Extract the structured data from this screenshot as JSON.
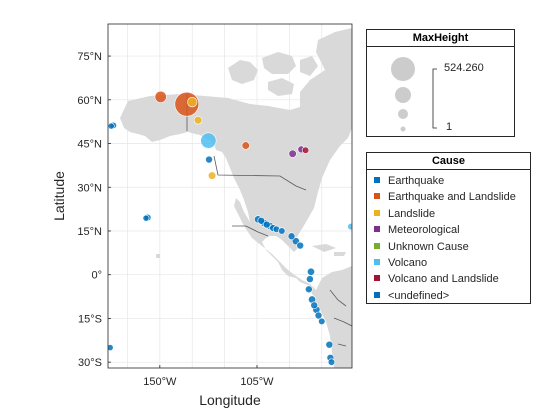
{
  "axes": {
    "xlabel": "Longitude",
    "ylabel": "Latitude",
    "lon_range": [
      -174,
      -61
    ],
    "lat_range": [
      -32,
      86
    ],
    "lat_ticks": [
      {
        "value": 75,
        "label": "75°N"
      },
      {
        "value": 60,
        "label": "60°N"
      },
      {
        "value": 45,
        "label": "45°N"
      },
      {
        "value": 30,
        "label": "30°N"
      },
      {
        "value": 15,
        "label": "15°N"
      },
      {
        "value": 0,
        "label": "0°"
      },
      {
        "value": -15,
        "label": "15°S"
      },
      {
        "value": -30,
        "label": "30°S"
      }
    ],
    "lon_ticks": [
      {
        "value": -150,
        "label": "150°W"
      },
      {
        "value": -105,
        "label": "105°W"
      }
    ],
    "grid": true
  },
  "size_legend": {
    "title": "MaxHeight",
    "max_label": "524.260",
    "min_label": "1"
  },
  "cause_legend": {
    "title": "Cause",
    "items": [
      {
        "label": "Earthquake",
        "color": "#0072BD"
      },
      {
        "label": "Earthquake and Landslide",
        "color": "#D95319"
      },
      {
        "label": "Landslide",
        "color": "#EDB120"
      },
      {
        "label": "Meteorological",
        "color": "#7E2F8E"
      },
      {
        "label": "Unknown Cause",
        "color": "#77AC30"
      },
      {
        "label": "Volcano",
        "color": "#4DBEEE"
      },
      {
        "label": "Volcano and Landslide",
        "color": "#A2142F"
      },
      {
        "label": "<undefined>",
        "color": "#0072BD"
      }
    ]
  },
  "chart_data": {
    "type": "scatter",
    "marker_size_variable": "MaxHeight",
    "marker_color_variable": "Cause",
    "points": [
      {
        "lon": -171.5,
        "lat": 51.2,
        "cause": "Earthquake",
        "height": 3
      },
      {
        "lon": -172.5,
        "lat": 51.0,
        "cause": "Earthquake",
        "height": 2
      },
      {
        "lon": -155.6,
        "lat": 19.6,
        "cause": "Earthquake",
        "height": 4
      },
      {
        "lon": -156.4,
        "lat": 19.4,
        "cause": "Earthquake",
        "height": 2
      },
      {
        "lon": -173.0,
        "lat": -25.0,
        "cause": "Earthquake",
        "height": 2
      },
      {
        "lon": -149.6,
        "lat": 61.0,
        "cause": "Earthquake and Landslide",
        "height": 60
      },
      {
        "lon": -137.5,
        "lat": 58.5,
        "cause": "Earthquake and Landslide",
        "height": 524.26
      },
      {
        "lon": -135.0,
        "lat": 59.2,
        "cause": "Landslide",
        "height": 30
      },
      {
        "lon": -132.3,
        "lat": 53.0,
        "cause": "Landslide",
        "height": 12
      },
      {
        "lon": -125.8,
        "lat": 34.0,
        "cause": "Landslide",
        "height": 10
      },
      {
        "lon": -127.5,
        "lat": 46.0,
        "cause": "Volcano",
        "height": 160
      },
      {
        "lon": -127.2,
        "lat": 39.5,
        "cause": "Earthquake",
        "height": 6
      },
      {
        "lon": -110.2,
        "lat": 44.3,
        "cause": "Earthquake and Landslide",
        "height": 10
      },
      {
        "lon": -88.5,
        "lat": 41.5,
        "cause": "Meteorological",
        "height": 10
      },
      {
        "lon": -84.5,
        "lat": 43.0,
        "cause": "Meteorological",
        "height": 6
      },
      {
        "lon": -82.5,
        "lat": 42.7,
        "cause": "Volcano and Landslide",
        "height": 4
      },
      {
        "lon": -104.5,
        "lat": 19.0,
        "cause": "Earthquake",
        "height": 8
      },
      {
        "lon": -103.0,
        "lat": 18.5,
        "cause": "Earthquake",
        "height": 6
      },
      {
        "lon": -101.8,
        "lat": 17.8,
        "cause": "Earthquake",
        "height": 8
      },
      {
        "lon": -100.5,
        "lat": 17.2,
        "cause": "Earthquake",
        "height": 6
      },
      {
        "lon": -99.0,
        "lat": 16.7,
        "cause": "Earthquake",
        "height": 8
      },
      {
        "lon": -97.5,
        "lat": 16.0,
        "cause": "Earthquake",
        "height": 6
      },
      {
        "lon": -96.0,
        "lat": 15.6,
        "cause": "Earthquake",
        "height": 4
      },
      {
        "lon": -93.5,
        "lat": 15.0,
        "cause": "Earthquake",
        "height": 4
      },
      {
        "lon": -89.0,
        "lat": 13.2,
        "cause": "Earthquake",
        "height": 6
      },
      {
        "lon": -87.0,
        "lat": 11.5,
        "cause": "Earthquake",
        "height": 8
      },
      {
        "lon": -85.0,
        "lat": 10.0,
        "cause": "Earthquake",
        "height": 6
      },
      {
        "lon": -80.0,
        "lat": 1.0,
        "cause": "Earthquake",
        "height": 8
      },
      {
        "lon": -80.5,
        "lat": -1.5,
        "cause": "Earthquake",
        "height": 6
      },
      {
        "lon": -81.0,
        "lat": -5.0,
        "cause": "Earthquake",
        "height": 6
      },
      {
        "lon": -79.5,
        "lat": -8.5,
        "cause": "Earthquake",
        "height": 8
      },
      {
        "lon": -78.5,
        "lat": -10.5,
        "cause": "Earthquake",
        "height": 6
      },
      {
        "lon": -77.5,
        "lat": -12.0,
        "cause": "Earthquake",
        "height": 8
      },
      {
        "lon": -76.5,
        "lat": -14.0,
        "cause": "Earthquake",
        "height": 6
      },
      {
        "lon": -75.0,
        "lat": -16.0,
        "cause": "Earthquake",
        "height": 4
      },
      {
        "lon": -71.5,
        "lat": -24.0,
        "cause": "Earthquake",
        "height": 6
      },
      {
        "lon": -71.0,
        "lat": -28.5,
        "cause": "Earthquake",
        "height": 6
      },
      {
        "lon": -70.5,
        "lat": -30.0,
        "cause": "Earthquake",
        "height": 4
      },
      {
        "lon": -61.5,
        "lat": 16.5,
        "cause": "Volcano",
        "height": 4
      }
    ]
  }
}
